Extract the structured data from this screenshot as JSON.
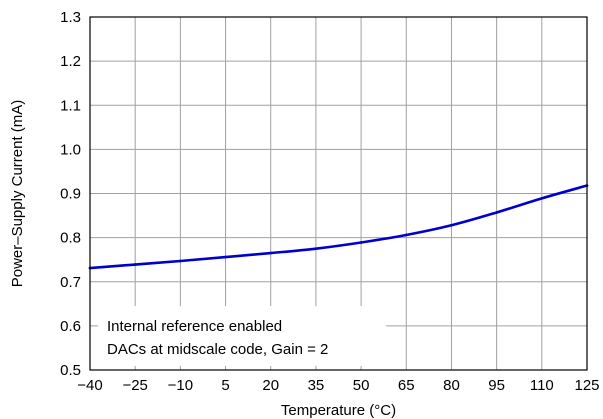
{
  "chart_data": {
    "type": "line",
    "xlabel": "Temperature (°C)",
    "ylabel": "Power–Supply Current (mA)",
    "xlim": [
      -40,
      125
    ],
    "ylim": [
      0.5,
      1.3
    ],
    "xticks": [
      -40,
      -25,
      -10,
      5,
      20,
      35,
      50,
      65,
      80,
      95,
      110,
      125
    ],
    "xtick_labels": [
      "−40",
      "−25",
      "−10",
      "5",
      "20",
      "35",
      "50",
      "65",
      "80",
      "95",
      "110",
      "125"
    ],
    "yticks": [
      0.5,
      0.6,
      0.7,
      0.8,
      0.9,
      1.0,
      1.1,
      1.2,
      1.3
    ],
    "ytick_labels": [
      "0.5",
      "0.6",
      "0.7",
      "0.8",
      "0.9",
      "1.0",
      "1.1",
      "1.2",
      "1.3"
    ],
    "grid": true,
    "series": [
      {
        "color": "#0000cc",
        "x": [
          -40,
          -25,
          -10,
          5,
          20,
          35,
          50,
          65,
          80,
          95,
          110,
          125
        ],
        "y": [
          0.731,
          0.739,
          0.747,
          0.756,
          0.765,
          0.775,
          0.789,
          0.806,
          0.828,
          0.857,
          0.889,
          0.918
        ]
      }
    ],
    "annotations": [
      "Internal reference enabled",
      "DACs at midscale code, Gain = 2"
    ]
  }
}
